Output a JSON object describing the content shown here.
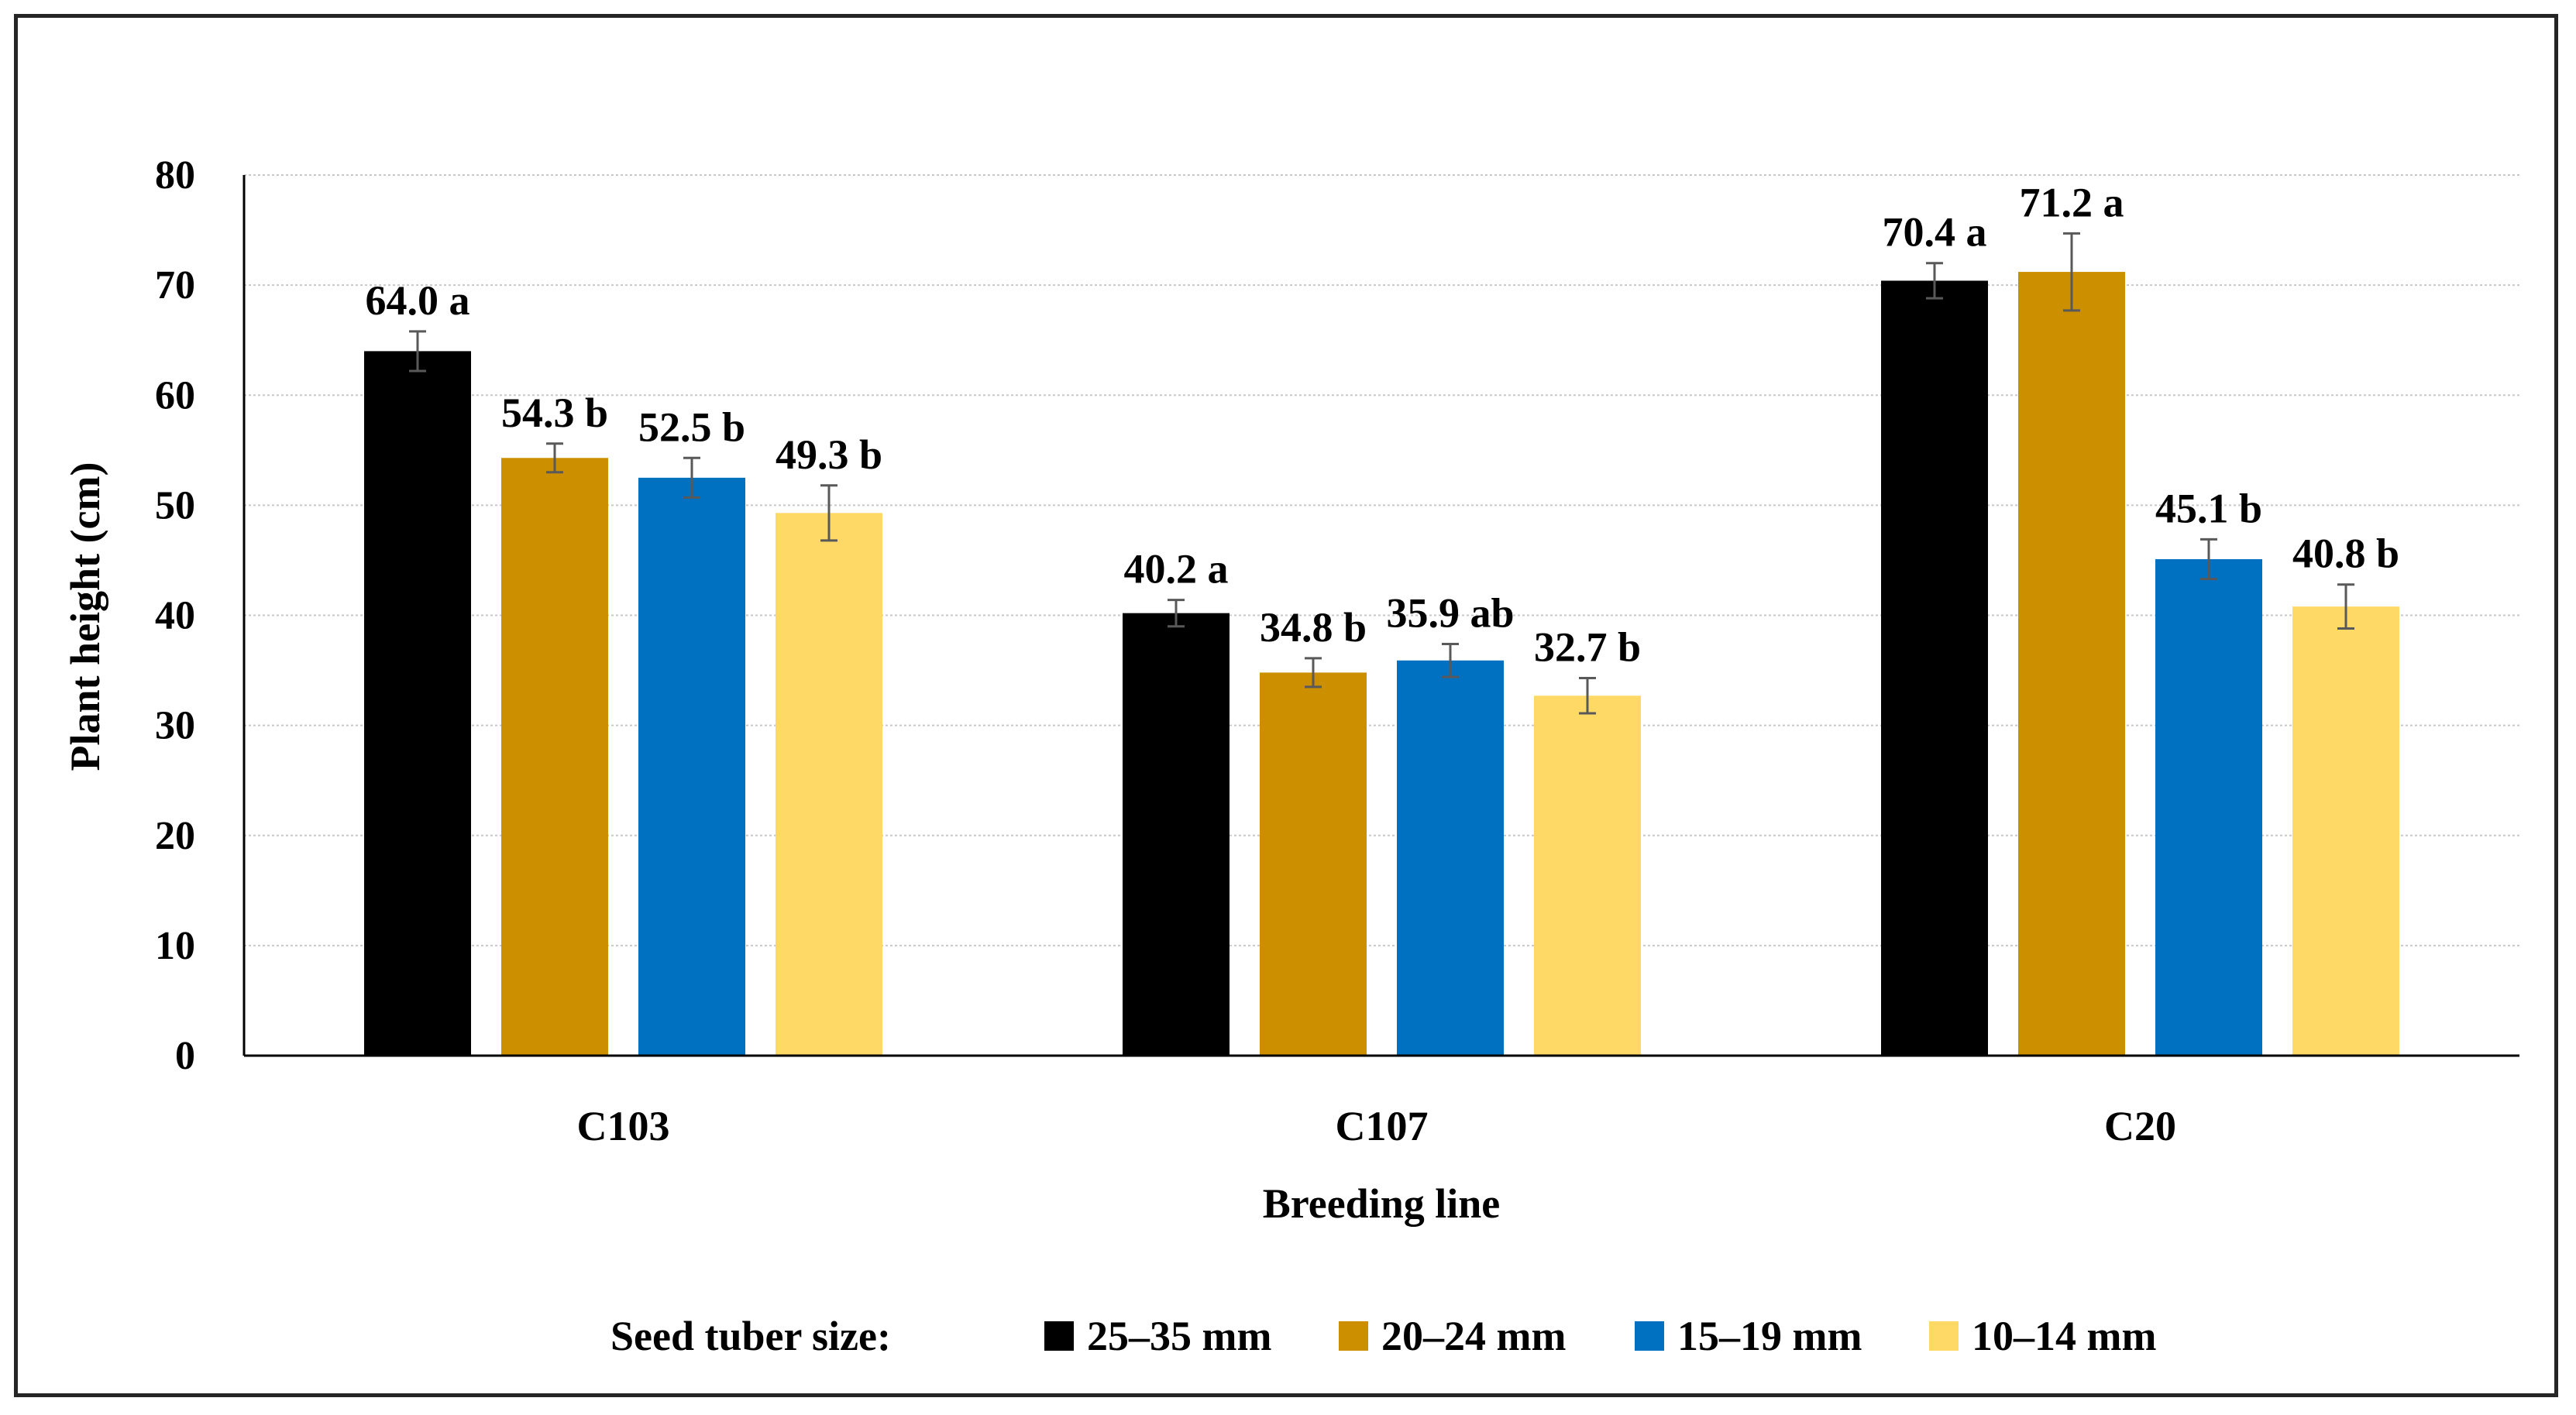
{
  "chart_data": {
    "type": "bar",
    "title": "",
    "xlabel": "Breeding line",
    "ylabel": "Plant height (cm)",
    "ylim": [
      0,
      80
    ],
    "yticks": [
      0,
      10,
      20,
      30,
      40,
      50,
      60,
      70,
      80
    ],
    "grid": true,
    "categories": [
      "C103",
      "C107",
      "C20"
    ],
    "legend_title": "Seed tuber size:",
    "legend_position": "bottom",
    "series": [
      {
        "name": "25–35 mm",
        "color": "#000000",
        "values": [
          64.0,
          40.2,
          70.4
        ],
        "errors": [
          1.8,
          1.2,
          1.6
        ],
        "labels": [
          "64.0 a",
          "40.2 a",
          "70.4 a"
        ]
      },
      {
        "name": "20–24 mm",
        "color": "#CC8F00",
        "values": [
          54.3,
          34.8,
          71.2
        ],
        "errors": [
          1.3,
          1.3,
          3.5
        ],
        "labels": [
          "54.3 b",
          "34.8 b",
          "71.2 a"
        ]
      },
      {
        "name": "15–19 mm",
        "color": "#0070C0",
        "values": [
          52.5,
          35.9,
          45.1
        ],
        "errors": [
          1.8,
          1.5,
          1.8
        ],
        "labels": [
          "52.5 b",
          "35.9 ab",
          "45.1 b"
        ]
      },
      {
        "name": "10–14 mm",
        "color": "#FFD966",
        "values": [
          49.3,
          32.7,
          40.8
        ],
        "errors": [
          2.5,
          1.6,
          2.0
        ],
        "labels": [
          "49.3 b",
          "32.7 b",
          "40.8 b"
        ]
      }
    ]
  }
}
